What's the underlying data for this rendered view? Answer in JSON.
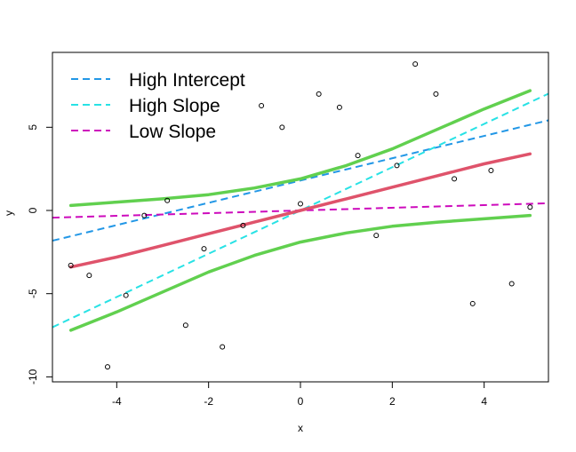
{
  "chart_data": {
    "type": "scatter",
    "title": "",
    "xlabel": "x",
    "ylabel": "y",
    "xlim": [
      -5.4,
      5.4
    ],
    "ylim": [
      -10.3,
      9.5
    ],
    "xticks": [
      -4,
      -2,
      0,
      2,
      4
    ],
    "yticks": [
      -10,
      -5,
      0,
      5
    ],
    "xtick_labels": [
      "-4",
      "-2",
      "0",
      "2",
      "4"
    ],
    "ytick_labels": [
      "-10",
      "-5",
      "0",
      "5"
    ],
    "grid": false,
    "legend_position": "top-left",
    "points": [
      {
        "x": -5.0,
        "y": -3.3
      },
      {
        "x": -4.6,
        "y": -3.9
      },
      {
        "x": -4.2,
        "y": -9.4
      },
      {
        "x": -3.8,
        "y": -5.1
      },
      {
        "x": -3.4,
        "y": -0.3
      },
      {
        "x": -2.9,
        "y": 0.6
      },
      {
        "x": -2.5,
        "y": -6.9
      },
      {
        "x": -2.1,
        "y": -2.3
      },
      {
        "x": -1.7,
        "y": -8.2
      },
      {
        "x": -1.25,
        "y": -0.9
      },
      {
        "x": -0.85,
        "y": 6.3
      },
      {
        "x": -0.4,
        "y": 5.0
      },
      {
        "x": 0.0,
        "y": 0.4
      },
      {
        "x": 0.4,
        "y": 7.0
      },
      {
        "x": 0.85,
        "y": 6.2
      },
      {
        "x": 1.25,
        "y": 3.3
      },
      {
        "x": 1.65,
        "y": -1.5
      },
      {
        "x": 2.1,
        "y": 2.7
      },
      {
        "x": 2.5,
        "y": 8.8
      },
      {
        "x": 2.95,
        "y": 7.0
      },
      {
        "x": 3.35,
        "y": 1.9
      },
      {
        "x": 3.75,
        "y": -5.6
      },
      {
        "x": 4.15,
        "y": 2.4
      },
      {
        "x": 4.6,
        "y": -4.4
      },
      {
        "x": 5.0,
        "y": 0.2
      }
    ],
    "lines": [
      {
        "name": "High Intercept",
        "color": "#2297E6",
        "dash": "dashed",
        "intercept": 1.8,
        "slope": 0.67,
        "legend": true
      },
      {
        "name": "High Slope",
        "color": "#28E2E5",
        "dash": "dashed",
        "intercept": 0.0,
        "slope": 1.3,
        "legend": true
      },
      {
        "name": "Low Slope",
        "color": "#CD0BBC",
        "dash": "dashed",
        "intercept": 0.0,
        "slope": 0.08,
        "legend": true
      }
    ],
    "fit_curves": [
      {
        "role": "fit",
        "color": "#DF536B",
        "x": [
          -5,
          -4,
          -3,
          -2,
          -1,
          0,
          1,
          2,
          3,
          4,
          5
        ],
        "y": [
          -3.4,
          -2.8,
          -2.1,
          -1.4,
          -0.7,
          0.0,
          0.7,
          1.4,
          2.1,
          2.8,
          3.4
        ]
      },
      {
        "role": "upper-band",
        "color": "#61D04F",
        "x": [
          -5,
          -4,
          -3,
          -2,
          -1,
          0,
          1,
          2,
          3,
          4,
          5
        ],
        "y": [
          0.3,
          0.5,
          0.7,
          0.95,
          1.35,
          1.9,
          2.7,
          3.7,
          4.9,
          6.1,
          7.2
        ]
      },
      {
        "role": "lower-band",
        "color": "#61D04F",
        "x": [
          -5,
          -4,
          -3,
          -2,
          -1,
          0,
          1,
          2,
          3,
          4,
          5
        ],
        "y": [
          -7.2,
          -6.1,
          -4.9,
          -3.7,
          -2.7,
          -1.9,
          -1.35,
          -0.95,
          -0.7,
          -0.5,
          -0.3
        ]
      }
    ]
  }
}
